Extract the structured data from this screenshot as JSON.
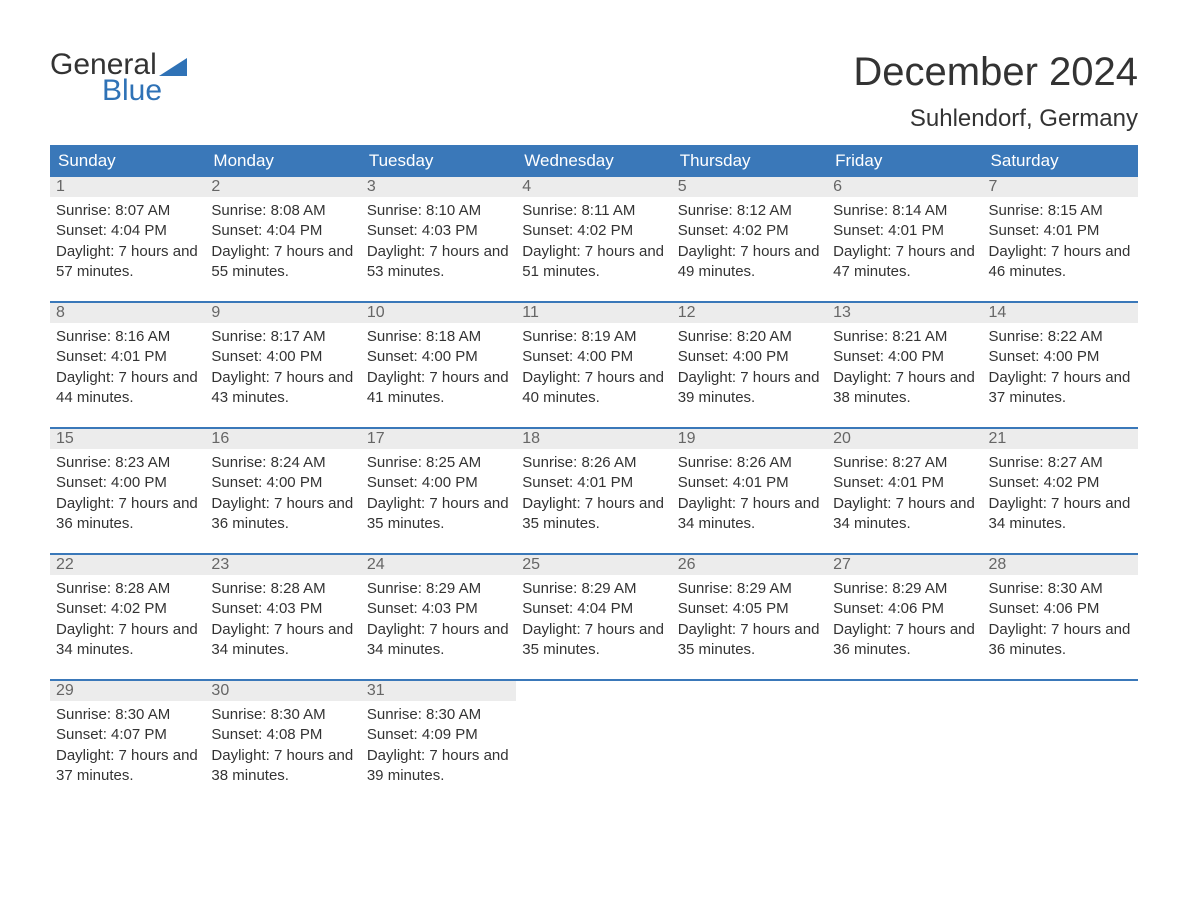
{
  "brand": {
    "text_general": "General",
    "text_blue": "Blue",
    "triangle_color": "#2f72b6",
    "general_color": "#333333",
    "blue_color": "#2f72b6"
  },
  "header": {
    "month_title": "December 2024",
    "location": "Suhlendorf, Germany"
  },
  "colors": {
    "header_bg": "#3a78b9",
    "header_text": "#ffffff",
    "daynum_bg": "#ececec",
    "daynum_text": "#666666",
    "body_text": "#333333",
    "week_border": "#3a78b9",
    "page_bg": "#ffffff"
  },
  "typography": {
    "month_title_size": 40,
    "location_size": 24,
    "weekday_size": 17,
    "daynum_size": 16,
    "content_size": 15
  },
  "weekdays": [
    "Sunday",
    "Monday",
    "Tuesday",
    "Wednesday",
    "Thursday",
    "Friday",
    "Saturday"
  ],
  "weeks": [
    [
      {
        "num": "1",
        "sunrise": "8:07 AM",
        "sunset": "4:04 PM",
        "daylight": "7 hours and 57 minutes."
      },
      {
        "num": "2",
        "sunrise": "8:08 AM",
        "sunset": "4:04 PM",
        "daylight": "7 hours and 55 minutes."
      },
      {
        "num": "3",
        "sunrise": "8:10 AM",
        "sunset": "4:03 PM",
        "daylight": "7 hours and 53 minutes."
      },
      {
        "num": "4",
        "sunrise": "8:11 AM",
        "sunset": "4:02 PM",
        "daylight": "7 hours and 51 minutes."
      },
      {
        "num": "5",
        "sunrise": "8:12 AM",
        "sunset": "4:02 PM",
        "daylight": "7 hours and 49 minutes."
      },
      {
        "num": "6",
        "sunrise": "8:14 AM",
        "sunset": "4:01 PM",
        "daylight": "7 hours and 47 minutes."
      },
      {
        "num": "7",
        "sunrise": "8:15 AM",
        "sunset": "4:01 PM",
        "daylight": "7 hours and 46 minutes."
      }
    ],
    [
      {
        "num": "8",
        "sunrise": "8:16 AM",
        "sunset": "4:01 PM",
        "daylight": "7 hours and 44 minutes."
      },
      {
        "num": "9",
        "sunrise": "8:17 AM",
        "sunset": "4:00 PM",
        "daylight": "7 hours and 43 minutes."
      },
      {
        "num": "10",
        "sunrise": "8:18 AM",
        "sunset": "4:00 PM",
        "daylight": "7 hours and 41 minutes."
      },
      {
        "num": "11",
        "sunrise": "8:19 AM",
        "sunset": "4:00 PM",
        "daylight": "7 hours and 40 minutes."
      },
      {
        "num": "12",
        "sunrise": "8:20 AM",
        "sunset": "4:00 PM",
        "daylight": "7 hours and 39 minutes."
      },
      {
        "num": "13",
        "sunrise": "8:21 AM",
        "sunset": "4:00 PM",
        "daylight": "7 hours and 38 minutes."
      },
      {
        "num": "14",
        "sunrise": "8:22 AM",
        "sunset": "4:00 PM",
        "daylight": "7 hours and 37 minutes."
      }
    ],
    [
      {
        "num": "15",
        "sunrise": "8:23 AM",
        "sunset": "4:00 PM",
        "daylight": "7 hours and 36 minutes."
      },
      {
        "num": "16",
        "sunrise": "8:24 AM",
        "sunset": "4:00 PM",
        "daylight": "7 hours and 36 minutes."
      },
      {
        "num": "17",
        "sunrise": "8:25 AM",
        "sunset": "4:00 PM",
        "daylight": "7 hours and 35 minutes."
      },
      {
        "num": "18",
        "sunrise": "8:26 AM",
        "sunset": "4:01 PM",
        "daylight": "7 hours and 35 minutes."
      },
      {
        "num": "19",
        "sunrise": "8:26 AM",
        "sunset": "4:01 PM",
        "daylight": "7 hours and 34 minutes."
      },
      {
        "num": "20",
        "sunrise": "8:27 AM",
        "sunset": "4:01 PM",
        "daylight": "7 hours and 34 minutes."
      },
      {
        "num": "21",
        "sunrise": "8:27 AM",
        "sunset": "4:02 PM",
        "daylight": "7 hours and 34 minutes."
      }
    ],
    [
      {
        "num": "22",
        "sunrise": "8:28 AM",
        "sunset": "4:02 PM",
        "daylight": "7 hours and 34 minutes."
      },
      {
        "num": "23",
        "sunrise": "8:28 AM",
        "sunset": "4:03 PM",
        "daylight": "7 hours and 34 minutes."
      },
      {
        "num": "24",
        "sunrise": "8:29 AM",
        "sunset": "4:03 PM",
        "daylight": "7 hours and 34 minutes."
      },
      {
        "num": "25",
        "sunrise": "8:29 AM",
        "sunset": "4:04 PM",
        "daylight": "7 hours and 35 minutes."
      },
      {
        "num": "26",
        "sunrise": "8:29 AM",
        "sunset": "4:05 PM",
        "daylight": "7 hours and 35 minutes."
      },
      {
        "num": "27",
        "sunrise": "8:29 AM",
        "sunset": "4:06 PM",
        "daylight": "7 hours and 36 minutes."
      },
      {
        "num": "28",
        "sunrise": "8:30 AM",
        "sunset": "4:06 PM",
        "daylight": "7 hours and 36 minutes."
      }
    ],
    [
      {
        "num": "29",
        "sunrise": "8:30 AM",
        "sunset": "4:07 PM",
        "daylight": "7 hours and 37 minutes."
      },
      {
        "num": "30",
        "sunrise": "8:30 AM",
        "sunset": "4:08 PM",
        "daylight": "7 hours and 38 minutes."
      },
      {
        "num": "31",
        "sunrise": "8:30 AM",
        "sunset": "4:09 PM",
        "daylight": "7 hours and 39 minutes."
      },
      null,
      null,
      null,
      null
    ]
  ],
  "labels": {
    "sunrise_prefix": "Sunrise: ",
    "sunset_prefix": "Sunset: ",
    "daylight_prefix": "Daylight: "
  }
}
